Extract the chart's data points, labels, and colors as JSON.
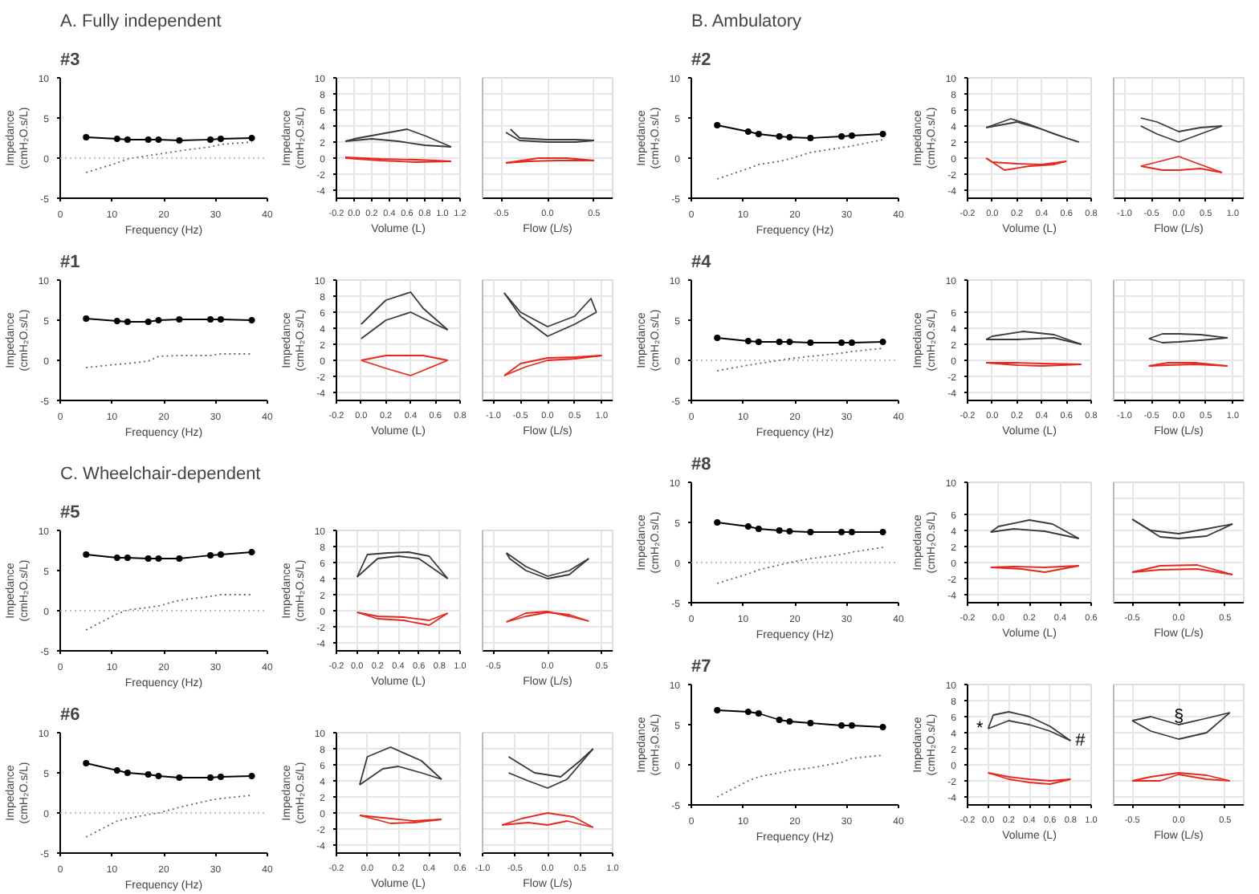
{
  "chart_data": [
    {
      "type": "line",
      "title": "A. Fully independent",
      "subtitle": "#3",
      "xlabel": "Frequency (Hz)",
      "ylabel": "Impedance (cmH₂O.s/L)",
      "x": [
        5,
        11,
        13,
        17,
        19,
        23,
        29,
        31,
        37
      ],
      "xlim": [
        0,
        40
      ],
      "xticks": [
        0,
        10,
        20,
        30,
        40
      ],
      "ylim": [
        -5,
        10
      ],
      "yticks": [
        -5,
        0,
        5,
        10
      ],
      "grid": false,
      "ref_lines": [
        {
          "axis": "y",
          "value": 0,
          "color": "#aaaaaa",
          "line_style": "dotted"
        }
      ],
      "series": [
        {
          "color": "#000000",
          "marker": "circle",
          "line_style": "solid",
          "values": [
            2.6,
            2.4,
            2.3,
            2.3,
            2.3,
            2.2,
            2.3,
            2.4,
            2.5
          ]
        },
        {
          "color": "#666666",
          "marker": "none",
          "line_style": "dotted",
          "values": [
            -1.8,
            -0.6,
            -0.1,
            0.3,
            0.5,
            0.9,
            1.4,
            1.7,
            2.0
          ]
        }
      ]
    },
    {
      "type": "line",
      "xlabel": "Volume (L)",
      "ylabel": "Impedance (cmH₂O.s/L)",
      "xlim": [
        -0.2,
        1.2
      ],
      "xticks": [
        -0.2,
        {
          "value": 0,
          "label": "0.0"
        },
        0.2,
        0.4,
        0.6,
        0.8,
        {
          "value": 1,
          "label": "1.0"
        },
        1.2
      ],
      "ylim": [
        -5,
        10
      ],
      "yticks": [
        -4,
        -2,
        0,
        2,
        4,
        6,
        8,
        10
      ],
      "grid": true,
      "series": [
        {
          "color": "#3a3a3a",
          "x": [
            -0.1,
            0.2,
            0.5,
            0.8,
            1.1
          ],
          "values": [
            2.1,
            2.4,
            2.1,
            1.6,
            1.4
          ]
        },
        {
          "color": "#3a3a3a",
          "x": [
            1.1,
            0.8,
            0.6,
            0.3,
            0.0,
            -0.1
          ],
          "values": [
            1.4,
            2.8,
            3.6,
            3.0,
            2.4,
            2.1
          ]
        },
        {
          "color": "#e8261c",
          "x": [
            -0.1,
            0.3,
            0.7,
            1.1
          ],
          "values": [
            0.0,
            -0.3,
            -0.5,
            -0.4
          ]
        },
        {
          "color": "#e8261c",
          "x": [
            1.1,
            0.7,
            0.3,
            -0.1
          ],
          "values": [
            -0.4,
            -0.2,
            -0.1,
            0.1
          ]
        }
      ]
    },
    {
      "type": "line",
      "xlabel": "Flow (L/s)",
      "xlim": [
        -0.7,
        0.7
      ],
      "xticks": [
        -0.5,
        {
          "value": 0,
          "label": "0.0"
        },
        0.5
      ],
      "ylim": [
        -5,
        10
      ],
      "yticks": [
        -4,
        -2,
        0,
        2,
        4,
        6,
        8,
        10
      ],
      "grid": true,
      "tick_labels": "x",
      "series": [
        {
          "color": "#3a3a3a",
          "x": [
            -0.45,
            -0.3,
            0,
            0.3,
            0.5
          ],
          "values": [
            3.2,
            2.2,
            2.0,
            2.0,
            2.2
          ]
        },
        {
          "color": "#3a3a3a",
          "x": [
            0.5,
            0.3,
            0,
            -0.3,
            -0.4
          ],
          "values": [
            2.2,
            2.3,
            2.3,
            2.5,
            3.6
          ]
        },
        {
          "color": "#e8261c",
          "x": [
            -0.45,
            -0.2,
            0.1,
            0.5
          ],
          "values": [
            -0.6,
            -0.4,
            -0.3,
            -0.3
          ]
        },
        {
          "color": "#e8261c",
          "x": [
            0.5,
            0.2,
            -0.1,
            -0.45
          ],
          "values": [
            -0.3,
            0.0,
            0.0,
            -0.6
          ]
        }
      ]
    },
    {
      "type": "line",
      "subtitle": "#1",
      "xlabel": "Frequency (Hz)",
      "ylabel": "Impedance (cmH₂O.s/L)",
      "x": [
        5,
        11,
        13,
        17,
        19,
        23,
        29,
        31,
        37
      ],
      "xlim": [
        0,
        40
      ],
      "xticks": [
        0,
        10,
        20,
        30,
        40
      ],
      "ylim": [
        -5,
        10
      ],
      "yticks": [
        -5,
        0,
        5,
        10
      ],
      "grid": false,
      "series": [
        {
          "color": "#000000",
          "marker": "circle",
          "line_style": "solid",
          "values": [
            5.2,
            4.9,
            4.8,
            4.8,
            5.0,
            5.1,
            5.1,
            5.1,
            5.0
          ]
        },
        {
          "color": "#666666",
          "marker": "none",
          "line_style": "dotted",
          "values": [
            -0.9,
            -0.5,
            -0.4,
            -0.1,
            0.5,
            0.6,
            0.6,
            0.8,
            0.8
          ]
        }
      ]
    },
    {
      "type": "line",
      "xlabel": "Volume (L)",
      "ylabel": "Impedance (cmH₂O.s/L)",
      "xlim": [
        -0.2,
        0.8
      ],
      "xticks": [
        -0.2,
        {
          "value": 0,
          "label": "0.0"
        },
        0.2,
        0.4,
        0.6,
        0.8
      ],
      "ylim": [
        -5,
        10
      ],
      "yticks": [
        -4,
        -2,
        0,
        2,
        4,
        6,
        8,
        10
      ],
      "grid": true,
      "series": [
        {
          "color": "#3a3a3a",
          "x": [
            0.0,
            0.2,
            0.4,
            0.6,
            0.7
          ],
          "values": [
            2.7,
            5.0,
            6.0,
            4.5,
            3.8
          ]
        },
        {
          "color": "#3a3a3a",
          "x": [
            0.7,
            0.5,
            0.4,
            0.2,
            0.0
          ],
          "values": [
            3.8,
            6.5,
            8.5,
            7.5,
            4.5
          ]
        },
        {
          "color": "#e8261c",
          "x": [
            0.0,
            0.2,
            0.4,
            0.7
          ],
          "values": [
            0.0,
            -1.0,
            -1.9,
            0.0
          ]
        },
        {
          "color": "#e8261c",
          "x": [
            0.7,
            0.5,
            0.2,
            0.0
          ],
          "values": [
            0.0,
            0.6,
            0.6,
            0.0
          ]
        }
      ]
    },
    {
      "type": "line",
      "xlabel": "Flow (L/s)",
      "xlim": [
        -1.2,
        1.2
      ],
      "xticks": [
        {
          "value": -1,
          "label": "-1.0"
        },
        -0.5,
        {
          "value": 0,
          "label": "0.0"
        },
        0.5,
        {
          "value": 1,
          "label": "1.0"
        }
      ],
      "ylim": [
        -5,
        10
      ],
      "yticks": [
        -4,
        -2,
        0,
        2,
        4,
        6,
        8,
        10
      ],
      "grid": true,
      "tick_labels": "x",
      "series": [
        {
          "color": "#3a3a3a",
          "x": [
            -0.8,
            -0.5,
            0,
            0.5,
            0.9
          ],
          "values": [
            8.4,
            5.5,
            3.0,
            4.5,
            6.0
          ]
        },
        {
          "color": "#3a3a3a",
          "x": [
            0.9,
            0.8,
            0.5,
            0,
            -0.5,
            -0.8
          ],
          "values": [
            6.0,
            7.7,
            5.5,
            4.2,
            6.0,
            8.4
          ]
        },
        {
          "color": "#e8261c",
          "x": [
            -0.8,
            -0.4,
            0,
            0.5,
            1.0
          ],
          "values": [
            -1.9,
            -0.8,
            0.0,
            0.2,
            0.6
          ]
        },
        {
          "color": "#e8261c",
          "x": [
            1.0,
            0.5,
            0,
            -0.5,
            -0.8
          ],
          "values": [
            0.6,
            0.4,
            0.3,
            -0.4,
            -1.9
          ]
        }
      ]
    },
    {
      "type": "line",
      "title": "B. Ambulatory",
      "subtitle": "#2",
      "xlabel": "Frequency (Hz)",
      "ylabel": "Impedance (cmH₂O.s/L)",
      "x": [
        5,
        11,
        13,
        17,
        19,
        23,
        29,
        31,
        37
      ],
      "xlim": [
        0,
        40
      ],
      "xticks": [
        0,
        10,
        20,
        30,
        40
      ],
      "ylim": [
        -5,
        10
      ],
      "yticks": [
        -5,
        0,
        5,
        10
      ],
      "grid": false,
      "series": [
        {
          "color": "#000000",
          "marker": "circle",
          "line_style": "solid",
          "values": [
            4.1,
            3.3,
            3.0,
            2.7,
            2.6,
            2.5,
            2.7,
            2.8,
            3.0
          ]
        },
        {
          "color": "#666666",
          "marker": "none",
          "line_style": "dotted",
          "values": [
            -2.6,
            -1.3,
            -0.8,
            -0.4,
            -0.1,
            0.7,
            1.3,
            1.5,
            2.3
          ]
        }
      ]
    },
    {
      "type": "line",
      "xlabel": "Volume (L)",
      "ylabel": "Impedance (cmH₂O.s/L)",
      "xlim": [
        -0.2,
        0.8
      ],
      "xticks": [
        -0.2,
        {
          "value": 0,
          "label": "0.0"
        },
        0.2,
        0.4,
        0.6,
        0.8
      ],
      "ylim": [
        -5,
        10
      ],
      "yticks": [
        -4,
        -2,
        0,
        2,
        4,
        6,
        8,
        10
      ],
      "grid": true,
      "series": [
        {
          "color": "#3a3a3a",
          "x": [
            -0.05,
            0.2,
            0.4,
            0.6,
            0.7
          ],
          "values": [
            3.8,
            4.5,
            3.6,
            2.5,
            2.0
          ]
        },
        {
          "color": "#3a3a3a",
          "x": [
            0.7,
            0.5,
            0.3,
            0.15,
            -0.05
          ],
          "values": [
            2.0,
            3.0,
            4.2,
            4.9,
            3.8
          ]
        },
        {
          "color": "#e8261c",
          "x": [
            -0.05,
            0.1,
            0.3,
            0.5,
            0.6
          ],
          "values": [
            0.0,
            -1.5,
            -1.0,
            -0.8,
            -0.4
          ]
        },
        {
          "color": "#e8261c",
          "x": [
            0.6,
            0.4,
            0.2,
            0.0,
            -0.05
          ],
          "values": [
            -0.4,
            -0.8,
            -0.7,
            -0.5,
            0.0
          ]
        }
      ]
    },
    {
      "type": "line",
      "xlabel": "Flow (L/s)",
      "xlim": [
        -1.2,
        1.2
      ],
      "xticks": [
        {
          "value": -1,
          "label": "-1.0"
        },
        -0.5,
        {
          "value": 0,
          "label": "0.0"
        },
        0.5,
        {
          "value": 1,
          "label": "1.0"
        }
      ],
      "ylim": [
        -5,
        10
      ],
      "yticks": [
        -4,
        -2,
        0,
        2,
        4,
        6,
        8,
        10
      ],
      "grid": true,
      "tick_labels": "x",
      "series": [
        {
          "color": "#3a3a3a",
          "x": [
            -0.7,
            -0.4,
            0,
            0.4,
            0.8
          ],
          "values": [
            4.0,
            3.0,
            2.0,
            3.0,
            4.0
          ]
        },
        {
          "color": "#3a3a3a",
          "x": [
            0.8,
            0.4,
            0,
            -0.4,
            -0.7
          ],
          "values": [
            4.0,
            3.8,
            3.3,
            4.5,
            5.0
          ]
        },
        {
          "color": "#e8261c",
          "x": [
            -0.7,
            -0.3,
            0,
            0.4,
            0.8
          ],
          "values": [
            -1.0,
            -1.5,
            -1.5,
            -1.3,
            -1.8
          ]
        },
        {
          "color": "#e8261c",
          "x": [
            0.8,
            0.4,
            0,
            -0.4,
            -0.7
          ],
          "values": [
            -1.8,
            -0.8,
            0.2,
            -0.5,
            -1.0
          ]
        }
      ]
    },
    {
      "type": "line",
      "subtitle": "#4",
      "xlabel": "Frequency (Hz)",
      "ylabel": "Impedance (cmH₂O.s/L)",
      "x": [
        5,
        11,
        13,
        17,
        19,
        23,
        29,
        31,
        37
      ],
      "xlim": [
        0,
        40
      ],
      "xticks": [
        0,
        10,
        20,
        30,
        40
      ],
      "ylim": [
        -5,
        10
      ],
      "yticks": [
        -5,
        0,
        5,
        10
      ],
      "grid": false,
      "ref_lines": [
        {
          "axis": "y",
          "value": 0,
          "color": "#aaaaaa",
          "line_style": "dotted"
        }
      ],
      "series": [
        {
          "color": "#000000",
          "marker": "circle",
          "line_style": "solid",
          "values": [
            2.8,
            2.4,
            2.3,
            2.3,
            2.3,
            2.2,
            2.2,
            2.2,
            2.3
          ]
        },
        {
          "color": "#666666",
          "marker": "none",
          "line_style": "dotted",
          "values": [
            -1.3,
            -0.6,
            -0.4,
            0.0,
            0.2,
            0.5,
            0.9,
            1.1,
            1.5
          ]
        }
      ]
    },
    {
      "type": "line",
      "xlabel": "Volume (L)",
      "ylabel": "Impedance (cmH₂O.s/L)",
      "xlim": [
        -0.2,
        0.8
      ],
      "xticks": [
        -0.2,
        {
          "value": 0,
          "label": "0.0"
        },
        0.2,
        0.4,
        0.6,
        0.8
      ],
      "ylim": [
        -5,
        10
      ],
      "yticks": [
        -4,
        -2,
        0,
        2,
        4,
        6,
        10
      ],
      "grid": true,
      "series": [
        {
          "color": "#3a3a3a",
          "x": [
            -0.05,
            0.2,
            0.5,
            0.72
          ],
          "values": [
            2.6,
            2.6,
            2.8,
            2.0
          ]
        },
        {
          "color": "#3a3a3a",
          "x": [
            0.72,
            0.5,
            0.25,
            0.0,
            -0.05
          ],
          "values": [
            2.0,
            3.2,
            3.6,
            3.0,
            2.6
          ]
        },
        {
          "color": "#e8261c",
          "x": [
            -0.05,
            0.2,
            0.4,
            0.72
          ],
          "values": [
            -0.3,
            -0.6,
            -0.7,
            -0.5
          ]
        },
        {
          "color": "#e8261c",
          "x": [
            0.72,
            0.4,
            0.2,
            -0.05
          ],
          "values": [
            -0.5,
            -0.4,
            -0.3,
            -0.3
          ]
        }
      ]
    },
    {
      "type": "line",
      "xlabel": "Flow (L/s)",
      "xlim": [
        -1.2,
        1.2
      ],
      "xticks": [
        {
          "value": -1,
          "label": "-1.0"
        },
        -0.5,
        {
          "value": 0,
          "label": "0.0"
        },
        0.5,
        {
          "value": 1,
          "label": "1.0"
        }
      ],
      "ylim": [
        -5,
        10
      ],
      "yticks": [
        -4,
        -2,
        0,
        2,
        4,
        6,
        8,
        10
      ],
      "grid": true,
      "tick_labels": "x",
      "series": [
        {
          "color": "#3a3a3a",
          "x": [
            -0.55,
            -0.3,
            0,
            0.4,
            0.9
          ],
          "values": [
            2.7,
            2.2,
            2.3,
            2.5,
            2.8
          ]
        },
        {
          "color": "#3a3a3a",
          "x": [
            0.9,
            0.4,
            0,
            -0.3,
            -0.55
          ],
          "values": [
            2.8,
            3.2,
            3.3,
            3.3,
            2.7
          ]
        },
        {
          "color": "#e8261c",
          "x": [
            -0.55,
            -0.2,
            0.3,
            0.9
          ],
          "values": [
            -0.7,
            -0.6,
            -0.5,
            -0.7
          ]
        },
        {
          "color": "#e8261c",
          "x": [
            0.9,
            0.3,
            -0.2,
            -0.55
          ],
          "values": [
            -0.7,
            -0.3,
            -0.3,
            -0.7
          ]
        }
      ]
    },
    {
      "type": "line",
      "subtitle": "#8",
      "xlabel": "Frequency (Hz)",
      "ylabel": "Impedance (cmH₂O.s/L)",
      "x": [
        5,
        11,
        13,
        17,
        19,
        23,
        29,
        31,
        37
      ],
      "xlim": [
        0,
        40
      ],
      "xticks": [
        0,
        10,
        20,
        30,
        40
      ],
      "ylim": [
        -5,
        10
      ],
      "yticks": [
        -5,
        0,
        5,
        10
      ],
      "grid": false,
      "ref_lines": [
        {
          "axis": "y",
          "value": 0,
          "color": "#aaaaaa",
          "line_style": "dotted"
        }
      ],
      "series": [
        {
          "color": "#000000",
          "marker": "circle",
          "line_style": "solid",
          "values": [
            5.0,
            4.5,
            4.2,
            4.0,
            3.9,
            3.8,
            3.8,
            3.8,
            3.8
          ]
        },
        {
          "color": "#666666",
          "marker": "none",
          "line_style": "dotted",
          "values": [
            -2.6,
            -1.4,
            -0.9,
            -0.3,
            0.0,
            0.5,
            1.0,
            1.3,
            1.9
          ]
        }
      ]
    },
    {
      "type": "line",
      "xlabel": "Volume (L)",
      "ylabel": "Impedance (cmH₂O.s/L)",
      "xlim": [
        -0.2,
        0.6
      ],
      "xticks": [
        -0.2,
        {
          "value": 0,
          "label": "0.0"
        },
        0.2,
        0.4,
        0.6
      ],
      "ylim": [
        -5,
        10
      ],
      "yticks": [
        -4,
        -2,
        0,
        2,
        4,
        6,
        10
      ],
      "grid": true,
      "series": [
        {
          "color": "#3a3a3a",
          "x": [
            -0.05,
            0.1,
            0.3,
            0.52
          ],
          "values": [
            3.8,
            4.2,
            3.9,
            3.0
          ]
        },
        {
          "color": "#3a3a3a",
          "x": [
            0.52,
            0.35,
            0.2,
            0.0,
            -0.05
          ],
          "values": [
            3.0,
            4.8,
            5.3,
            4.5,
            3.8
          ]
        },
        {
          "color": "#e8261c",
          "x": [
            -0.05,
            0.15,
            0.3,
            0.52
          ],
          "values": [
            -0.6,
            -0.8,
            -1.2,
            -0.4
          ]
        },
        {
          "color": "#e8261c",
          "x": [
            0.52,
            0.3,
            0.1,
            -0.05
          ],
          "values": [
            -0.4,
            -0.6,
            -0.5,
            -0.6
          ]
        }
      ]
    },
    {
      "type": "line",
      "xlabel": "Flow (L/s)",
      "xlim": [
        -0.7,
        0.7
      ],
      "xticks": [
        -0.5,
        {
          "value": 0,
          "label": "0.0"
        },
        0.5
      ],
      "ylim": [
        -5,
        10
      ],
      "yticks": [
        -4,
        -2,
        0,
        2,
        4,
        6,
        8,
        10
      ],
      "grid": true,
      "tick_labels": "x",
      "series": [
        {
          "color": "#3a3a3a",
          "x": [
            -0.5,
            -0.2,
            0.0,
            0.3,
            0.58
          ],
          "values": [
            5.4,
            3.2,
            3.0,
            3.3,
            4.8
          ]
        },
        {
          "color": "#3a3a3a",
          "x": [
            0.58,
            0.3,
            0,
            -0.3,
            -0.5
          ],
          "values": [
            4.8,
            4.2,
            3.6,
            4.0,
            5.4
          ]
        },
        {
          "color": "#e8261c",
          "x": [
            -0.5,
            -0.2,
            0.2,
            0.58
          ],
          "values": [
            -1.2,
            -0.9,
            -0.8,
            -1.5
          ]
        },
        {
          "color": "#e8261c",
          "x": [
            0.58,
            0.2,
            -0.2,
            -0.5
          ],
          "values": [
            -1.5,
            -0.3,
            -0.4,
            -1.2
          ]
        }
      ]
    },
    {
      "type": "line",
      "subtitle": "#7",
      "xlabel": "Frequency (Hz)",
      "ylabel": "Impedance (cmH₂O.s/L)",
      "x": [
        5,
        11,
        13,
        17,
        19,
        23,
        29,
        31,
        37
      ],
      "xlim": [
        0,
        40
      ],
      "xticks": [
        0,
        10,
        20,
        30,
        40
      ],
      "ylim": [
        -5,
        10
      ],
      "yticks": [
        -5,
        0,
        5,
        10
      ],
      "grid": false,
      "series": [
        {
          "color": "#000000",
          "marker": "circle",
          "line_style": "solid",
          "values": [
            6.8,
            6.6,
            6.4,
            5.6,
            5.4,
            5.2,
            4.9,
            4.9,
            4.7
          ]
        },
        {
          "color": "#666666",
          "marker": "none",
          "line_style": "dotted",
          "values": [
            -4.0,
            -2.0,
            -1.5,
            -1.0,
            -0.7,
            -0.4,
            0.3,
            0.8,
            1.2
          ]
        }
      ]
    },
    {
      "type": "line",
      "xlabel": "Volume (L)",
      "ylabel": "Impedance (cmH₂O.s/L)",
      "xlim": [
        -0.2,
        1.0
      ],
      "xticks": [
        -0.2,
        {
          "value": 0,
          "label": "0.0"
        },
        0.2,
        0.4,
        0.6,
        0.8,
        {
          "value": 1,
          "label": "1.0"
        }
      ],
      "ylim": [
        -5,
        10
      ],
      "yticks": [
        -4,
        -2,
        0,
        2,
        4,
        6,
        8,
        10
      ],
      "grid": true,
      "annotations": [
        "*",
        "#"
      ],
      "series": [
        {
          "color": "#3a3a3a",
          "x": [
            0.0,
            0.2,
            0.4,
            0.6,
            0.8
          ],
          "values": [
            4.5,
            5.5,
            5.0,
            4.2,
            3.0
          ]
        },
        {
          "color": "#3a3a3a",
          "x": [
            0.8,
            0.6,
            0.4,
            0.2,
            0.05,
            0.0
          ],
          "values": [
            3.0,
            4.8,
            6.0,
            6.6,
            6.2,
            4.5
          ]
        },
        {
          "color": "#e8261c",
          "x": [
            0.0,
            0.2,
            0.4,
            0.6,
            0.8
          ],
          "values": [
            -1.0,
            -1.8,
            -2.2,
            -2.4,
            -1.8
          ]
        },
        {
          "color": "#e8261c",
          "x": [
            0.8,
            0.6,
            0.4,
            0.2,
            0.0
          ],
          "values": [
            -1.8,
            -2.0,
            -1.8,
            -1.5,
            -1.0
          ]
        }
      ]
    },
    {
      "type": "line",
      "xlabel": "Flow (L/s)",
      "xlim": [
        -0.7,
        0.7
      ],
      "xticks": [
        -0.5,
        {
          "value": 0,
          "label": "0.0"
        },
        0.5
      ],
      "ylim": [
        -5,
        10
      ],
      "yticks": [
        -4,
        -2,
        0,
        2,
        4,
        6,
        8,
        10
      ],
      "grid": true,
      "tick_labels": "x",
      "annotations": [
        "§"
      ],
      "series": [
        {
          "color": "#3a3a3a",
          "x": [
            -0.5,
            -0.3,
            0,
            0.3,
            0.55
          ],
          "values": [
            5.5,
            4.2,
            3.2,
            4.0,
            6.5
          ]
        },
        {
          "color": "#3a3a3a",
          "x": [
            0.55,
            0.3,
            0,
            -0.3,
            -0.5
          ],
          "values": [
            6.5,
            5.8,
            5.0,
            6.0,
            5.5
          ]
        },
        {
          "color": "#e8261c",
          "x": [
            -0.5,
            -0.2,
            0,
            0.3,
            0.55
          ],
          "values": [
            -2.0,
            -2.0,
            -1.2,
            -1.8,
            -2.0
          ]
        },
        {
          "color": "#e8261c",
          "x": [
            0.55,
            0.3,
            0,
            -0.3,
            -0.5
          ],
          "values": [
            -2.0,
            -1.3,
            -1.0,
            -1.5,
            -2.0
          ]
        }
      ]
    },
    {
      "type": "line",
      "title": "C. Wheelchair-dependent",
      "subtitle": "#5",
      "xlabel": "Frequency (Hz)",
      "ylabel": "Impedance (cmH₂O.s/L)",
      "x": [
        5,
        11,
        13,
        17,
        19,
        23,
        29,
        31,
        37
      ],
      "xlim": [
        0,
        40
      ],
      "xticks": [
        0,
        10,
        20,
        30,
        40
      ],
      "ylim": [
        -5,
        10
      ],
      "yticks": [
        -5,
        0,
        5,
        10
      ],
      "grid": false,
      "ref_lines": [
        {
          "axis": "y",
          "value": 0,
          "color": "#aaaaaa",
          "line_style": "dotted"
        }
      ],
      "series": [
        {
          "color": "#000000",
          "marker": "circle",
          "line_style": "solid",
          "values": [
            7.0,
            6.6,
            6.6,
            6.5,
            6.5,
            6.5,
            6.9,
            7.0,
            7.3
          ]
        },
        {
          "color": "#666666",
          "marker": "none",
          "line_style": "dotted",
          "values": [
            -2.4,
            -0.4,
            0.1,
            0.4,
            0.6,
            1.3,
            1.8,
            2.0,
            2.0
          ]
        }
      ]
    },
    {
      "type": "line",
      "xlabel": "Volume (L)",
      "ylabel": "Impedance (cmH₂O.s/L)",
      "xlim": [
        -0.2,
        1.0
      ],
      "xticks": [
        -0.2,
        {
          "value": 0,
          "label": "0.0"
        },
        0.2,
        0.4,
        0.6,
        0.8,
        {
          "value": 1,
          "label": "1.0"
        }
      ],
      "ylim": [
        -5,
        10
      ],
      "yticks": [
        -4,
        -2,
        0,
        2,
        4,
        6,
        8,
        10
      ],
      "grid": true,
      "series": [
        {
          "color": "#3a3a3a",
          "x": [
            0.0,
            0.2,
            0.4,
            0.6,
            0.88
          ],
          "values": [
            4.2,
            6.5,
            6.8,
            6.5,
            4.0
          ]
        },
        {
          "color": "#3a3a3a",
          "x": [
            0.88,
            0.7,
            0.5,
            0.3,
            0.1,
            0.0
          ],
          "values": [
            4.0,
            6.8,
            7.3,
            7.2,
            7.0,
            4.2
          ]
        },
        {
          "color": "#e8261c",
          "x": [
            0.0,
            0.2,
            0.45,
            0.7,
            0.88
          ],
          "values": [
            -0.2,
            -1.0,
            -1.2,
            -1.8,
            -0.3
          ]
        },
        {
          "color": "#e8261c",
          "x": [
            0.88,
            0.7,
            0.45,
            0.2,
            0.0
          ],
          "values": [
            -0.3,
            -1.2,
            -0.8,
            -0.7,
            -0.2
          ]
        }
      ]
    },
    {
      "type": "line",
      "xlabel": "Flow (L/s)",
      "xlim": [
        -0.6,
        0.6
      ],
      "xticks": [
        -0.5,
        {
          "value": 0,
          "label": "0.0"
        },
        0.5
      ],
      "ylim": [
        -5,
        10
      ],
      "yticks": [
        -4,
        -2,
        0,
        2,
        4,
        6,
        8,
        10
      ],
      "grid": true,
      "tick_labels": "x",
      "series": [
        {
          "color": "#3a3a3a",
          "x": [
            -0.38,
            -0.35,
            -0.2,
            0,
            0.2,
            0.38
          ],
          "values": [
            7.2,
            6.5,
            5.0,
            4.0,
            4.5,
            6.5
          ]
        },
        {
          "color": "#3a3a3a",
          "x": [
            0.38,
            0.2,
            0,
            -0.2,
            -0.38
          ],
          "values": [
            6.5,
            5.0,
            4.3,
            5.5,
            7.2
          ]
        },
        {
          "color": "#e8261c",
          "x": [
            -0.38,
            -0.2,
            0,
            0.2,
            0.38
          ],
          "values": [
            -1.4,
            -0.7,
            -0.2,
            -0.5,
            -1.3
          ]
        },
        {
          "color": "#e8261c",
          "x": [
            0.38,
            0.2,
            0,
            -0.2,
            -0.38
          ],
          "values": [
            -1.3,
            -0.7,
            -0.1,
            -0.3,
            -1.4
          ]
        }
      ]
    },
    {
      "type": "line",
      "subtitle": "#6",
      "xlabel": "Frequency (Hz)",
      "ylabel": "Impedance (cmH₂O.s/L)",
      "x": [
        5,
        11,
        13,
        17,
        19,
        23,
        29,
        31,
        37
      ],
      "xlim": [
        0,
        40
      ],
      "xticks": [
        0,
        10,
        20,
        30,
        40
      ],
      "ylim": [
        -5,
        10
      ],
      "yticks": [
        -5,
        0,
        5,
        10
      ],
      "grid": false,
      "ref_lines": [
        {
          "axis": "y",
          "value": 0,
          "color": "#aaaaaa",
          "line_style": "dotted"
        }
      ],
      "series": [
        {
          "color": "#000000",
          "marker": "circle",
          "line_style": "solid",
          "values": [
            6.2,
            5.3,
            5.0,
            4.8,
            4.6,
            4.4,
            4.4,
            4.5,
            4.6
          ]
        },
        {
          "color": "#666666",
          "marker": "none",
          "line_style": "dotted",
          "values": [
            -3.0,
            -1.0,
            -0.7,
            -0.2,
            0.0,
            0.7,
            1.6,
            1.8,
            2.2
          ]
        }
      ]
    },
    {
      "type": "line",
      "xlabel": "Volume (L)",
      "ylabel": "Impedance (cmH₂O.s/L)",
      "xlim": [
        -0.2,
        0.6
      ],
      "xticks": [
        -0.2,
        {
          "value": 0,
          "label": "0.0"
        },
        0.2,
        0.4,
        0.6
      ],
      "ylim": [
        -5,
        10
      ],
      "yticks": [
        -4,
        -2,
        0,
        2,
        4,
        6,
        8,
        10
      ],
      "grid": true,
      "series": [
        {
          "color": "#3a3a3a",
          "x": [
            -0.05,
            0.1,
            0.2,
            0.35,
            0.48
          ],
          "values": [
            3.5,
            5.5,
            5.8,
            5.0,
            4.2
          ]
        },
        {
          "color": "#3a3a3a",
          "x": [
            0.48,
            0.35,
            0.15,
            0.0,
            -0.05
          ],
          "values": [
            4.2,
            6.5,
            8.2,
            7.0,
            3.5
          ]
        },
        {
          "color": "#e8261c",
          "x": [
            -0.05,
            0.15,
            0.3,
            0.48
          ],
          "values": [
            -0.3,
            -1.3,
            -1.2,
            -0.8
          ]
        },
        {
          "color": "#e8261c",
          "x": [
            0.48,
            0.3,
            0.1,
            -0.05
          ],
          "values": [
            -0.8,
            -1.0,
            -0.6,
            -0.3
          ]
        }
      ]
    },
    {
      "type": "line",
      "xlabel": "Flow (L/s)",
      "xlim": [
        -1.0,
        1.0
      ],
      "xticks": [
        {
          "value": -1,
          "label": "-1.0"
        },
        -0.5,
        {
          "value": 0,
          "label": "0.0"
        },
        0.5,
        {
          "value": 1,
          "label": "1.0"
        }
      ],
      "ylim": [
        -5,
        10
      ],
      "yticks": [
        -4,
        -2,
        0,
        2,
        4,
        6,
        8,
        10
      ],
      "grid": true,
      "tick_labels": "x",
      "series": [
        {
          "color": "#3a3a3a",
          "x": [
            -0.6,
            -0.3,
            0,
            0.3,
            0.7
          ],
          "values": [
            5.0,
            4.0,
            3.1,
            4.2,
            8.0
          ]
        },
        {
          "color": "#3a3a3a",
          "x": [
            0.7,
            0.5,
            0.2,
            -0.2,
            -0.6
          ],
          "values": [
            8.0,
            6.5,
            4.5,
            5.0,
            7.0
          ]
        },
        {
          "color": "#e8261c",
          "x": [
            -0.7,
            -0.3,
            0,
            0.3,
            0.7
          ],
          "values": [
            -1.5,
            -1.2,
            -1.5,
            -1.0,
            -1.8
          ]
        },
        {
          "color": "#e8261c",
          "x": [
            0.7,
            0.4,
            0,
            -0.4,
            -0.7
          ],
          "values": [
            -1.8,
            -0.5,
            0.0,
            -0.7,
            -1.5
          ]
        }
      ]
    }
  ]
}
